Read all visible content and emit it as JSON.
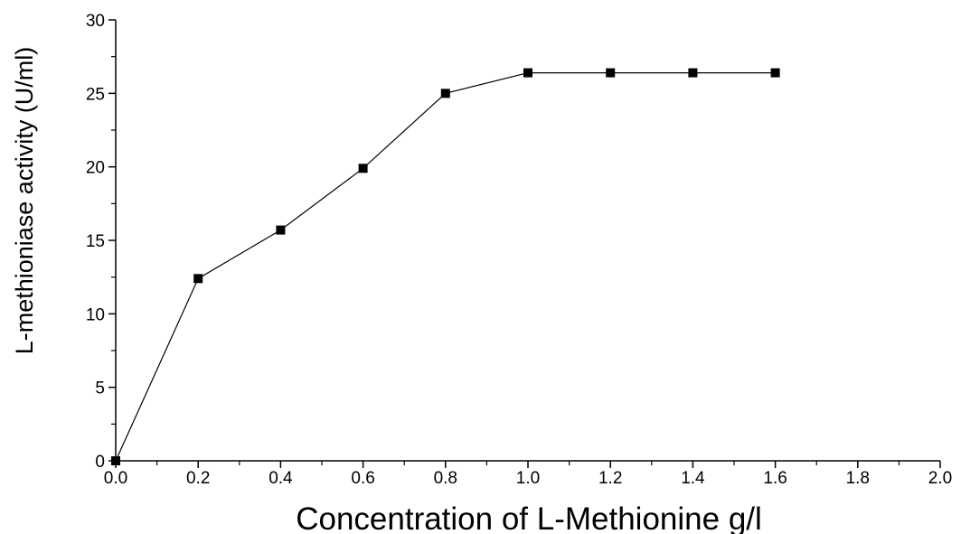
{
  "chart_data": {
    "type": "line",
    "xlabel": "Concentration of L-Methionine g/l",
    "ylabel": "L-methioniase activity (U/ml)",
    "xlim": [
      0.0,
      2.0
    ],
    "ylim": [
      0,
      30
    ],
    "x_ticks": [
      0.0,
      0.2,
      0.4,
      0.6,
      0.8,
      1.0,
      1.2,
      1.4,
      1.6,
      1.8,
      2.0
    ],
    "x_tick_labels": [
      "0.0",
      "0.2",
      "0.4",
      "0.6",
      "0.8",
      "1.0",
      "1.2",
      "1.4",
      "1.6",
      "1.8",
      "2.0"
    ],
    "y_ticks": [
      0,
      5,
      10,
      15,
      20,
      25,
      30
    ],
    "y_tick_labels": [
      "0",
      "5",
      "10",
      "15",
      "20",
      "25",
      "30"
    ],
    "grid": false,
    "series": [
      {
        "x": [
          0.0,
          0.2,
          0.4,
          0.6,
          0.8,
          1.0,
          1.2,
          1.4,
          1.6
        ],
        "y": [
          0,
          12.4,
          15.7,
          19.9,
          25.0,
          26.4,
          26.4,
          26.4,
          26.4
        ],
        "marker": "square",
        "color": "#000000"
      }
    ]
  }
}
